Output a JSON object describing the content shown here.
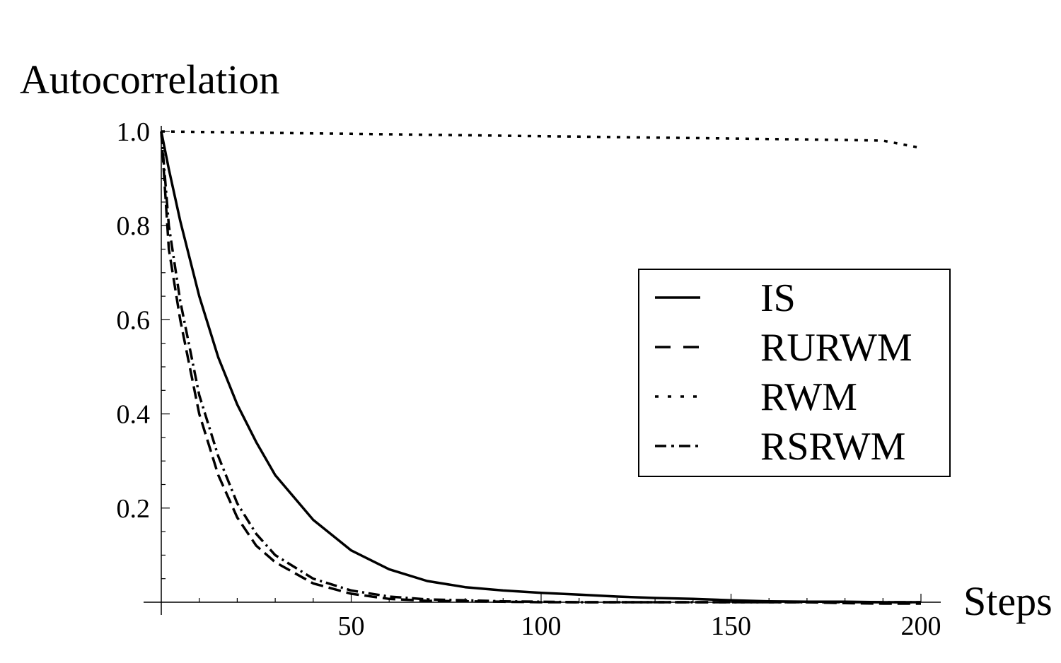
{
  "chart_data": {
    "type": "line",
    "ylabel": "Autocorrelation",
    "xlabel": "Steps",
    "xlim": [
      0,
      200
    ],
    "ylim": [
      0,
      1.0
    ],
    "x_ticks": [
      50,
      100,
      150,
      200
    ],
    "x_tick_labels": [
      "50",
      "100",
      "150",
      "200"
    ],
    "y_ticks": [
      0.2,
      0.4,
      0.6,
      0.8,
      1.0
    ],
    "y_tick_labels": [
      "0.2",
      "0.4",
      "0.6",
      "0.8",
      "1.0"
    ],
    "grid": false,
    "legend": "right",
    "x": [
      0,
      2,
      5,
      10,
      15,
      20,
      25,
      30,
      40,
      50,
      60,
      70,
      80,
      90,
      100,
      110,
      120,
      130,
      140,
      150,
      160,
      170,
      180,
      190,
      200
    ],
    "series": [
      {
        "name": "IS",
        "style": "solid",
        "values": [
          1.0,
          0.92,
          0.81,
          0.65,
          0.52,
          0.42,
          0.34,
          0.27,
          0.175,
          0.11,
          0.07,
          0.045,
          0.032,
          0.025,
          0.02,
          0.016,
          0.012,
          0.009,
          0.007,
          0.004,
          0.002,
          0.001,
          0.001,
          0.0,
          0.0
        ]
      },
      {
        "name": "RURWM",
        "style": "dashed",
        "values": [
          1.0,
          0.75,
          0.6,
          0.4,
          0.27,
          0.18,
          0.12,
          0.085,
          0.04,
          0.018,
          0.007,
          0.003,
          0.002,
          0.001,
          0.0,
          0.0,
          0.0,
          0.0,
          0.0,
          0.0,
          0.0,
          0.0,
          -0.002,
          -0.003,
          -0.003
        ]
      },
      {
        "name": "RWM",
        "style": "dotted",
        "values": [
          1.0,
          0.9998,
          0.9995,
          0.999,
          0.9985,
          0.998,
          0.9975,
          0.997,
          0.996,
          0.995,
          0.994,
          0.993,
          0.992,
          0.991,
          0.99,
          0.989,
          0.988,
          0.987,
          0.986,
          0.985,
          0.984,
          0.983,
          0.982,
          0.9805,
          0.965
        ]
      },
      {
        "name": "RSRWM",
        "style": "dashdot",
        "values": [
          1.0,
          0.8,
          0.64,
          0.44,
          0.31,
          0.21,
          0.145,
          0.1,
          0.05,
          0.025,
          0.012,
          0.006,
          0.004,
          0.002,
          0.001,
          0.0,
          0.0,
          0.0,
          0.0,
          0.0,
          0.0,
          0.0,
          0.0,
          0.0,
          0.0
        ]
      }
    ]
  }
}
